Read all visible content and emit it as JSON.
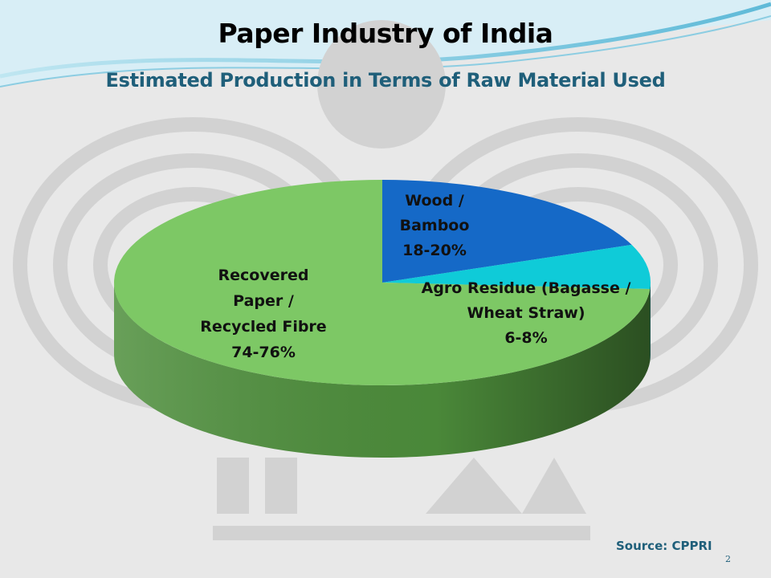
{
  "slide": {
    "title": "Paper Industry of India",
    "subtitle": "Estimated Production in Terms of Raw Material Used",
    "source": "Source: CPPRI",
    "page_number": "2",
    "colors": {
      "title": "#000000",
      "subtitle": "#1f5f7a",
      "source": "#1f5f7a",
      "wave": "#9ed3e6",
      "watermark": "#d4d4d4"
    }
  },
  "chart_data": {
    "type": "pie",
    "style": "3d",
    "slices": [
      {
        "label_lines": [
          "Wood /",
          "Bamboo",
          "18-20%"
        ],
        "range": [
          18,
          20
        ],
        "value": 19,
        "color": "#1569c7",
        "side_color": "#0d4a8f"
      },
      {
        "label_lines": [
          "Agro Residue (Bagasse /",
          "Wheat Straw)",
          "6-8%"
        ],
        "range": [
          6,
          8
        ],
        "value": 7,
        "color": "#0fcbd8",
        "side_color": "#0a8f99"
      },
      {
        "label_lines": [
          "Recovered",
          "Paper /",
          "Recycled Fibre",
          "74-76%"
        ],
        "range": [
          74,
          76
        ],
        "value": 74,
        "color": "#7dc865",
        "side_color": "#4e8f3c"
      }
    ]
  }
}
